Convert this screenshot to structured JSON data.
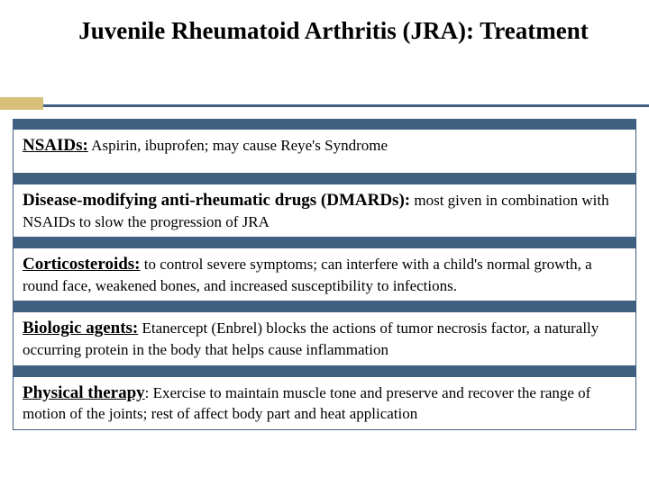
{
  "title": "Juvenile Rheumatoid Arthritis (JRA): Treatment",
  "accent_bar_color": "#d9c07a",
  "band_color": "#406080",
  "background_color": "#ffffff",
  "text_color": "#000000",
  "title_fontsize": 27,
  "body_fontsize": 17,
  "term_fontsize": 19,
  "items": [
    {
      "term": "NSAIDs:",
      "term_underlined": true,
      "desc": " Aspirin, ibuprofen; may cause Reye's  Syndrome",
      "extra_pad": true
    },
    {
      "term": "Disease-modifying anti-rheumatic drugs (DMARDs):",
      "term_underlined": false,
      "desc": " most given in combination with NSAIDs to slow the progression of JRA",
      "extra_pad": false
    },
    {
      "term": "Corticosteroids:",
      "term_underlined": true,
      "desc": " to control severe symptoms; can interfere with a child's normal growth,  a round face, weakened bones, and increased susceptibility to infections.",
      "extra_pad": false
    },
    {
      "term": "Biologic agents:",
      "term_underlined": true,
      "desc": " Etanercept (Enbrel) blocks the actions of tumor necrosis factor, a naturally occurring protein in the body that helps cause inflammation",
      "extra_pad": false
    },
    {
      "term": "Physical therapy",
      "term_underlined": true,
      "term_suffix": ":",
      "desc": " Exercise to maintain muscle tone and preserve and recover the range of motion of the joints; rest of affect body part and heat application",
      "extra_pad": false
    }
  ]
}
